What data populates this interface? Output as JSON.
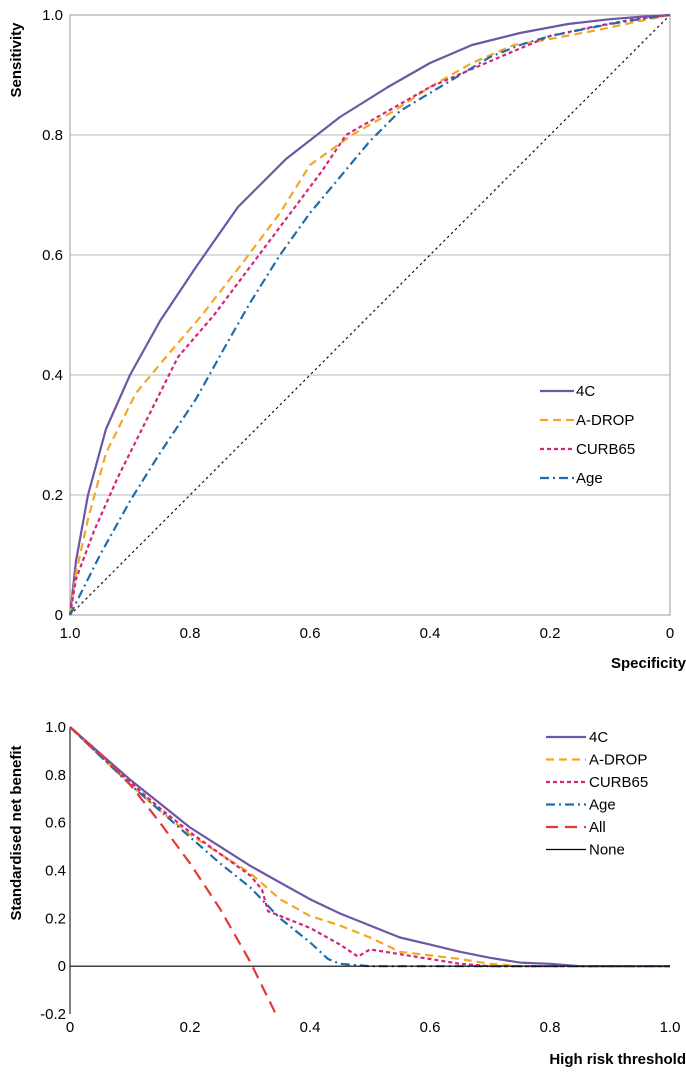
{
  "chart_data": [
    {
      "type": "line",
      "xlabel": "Specificity",
      "ylabel": "Sensitivity",
      "xlim": [
        1.0,
        0
      ],
      "ylim": [
        0,
        1.0
      ],
      "x_reversed": true,
      "x_ticks": [
        "1.0",
        "0.8",
        "0.6",
        "0.4",
        "0.2",
        "0"
      ],
      "x_tick_values": [
        1.0,
        0.8,
        0.6,
        0.4,
        0.2,
        0
      ],
      "y_ticks": [
        "0",
        "0.2",
        "0.4",
        "0.6",
        "0.8",
        "1.0"
      ],
      "y_tick_values": [
        0,
        0.2,
        0.4,
        0.6,
        0.8,
        1.0
      ],
      "grid": "horizontal",
      "legend_position": "bottom-right",
      "reference_line": {
        "from": [
          1.0,
          0
        ],
        "to": [
          0,
          1.0
        ],
        "style": "dotted",
        "color": "#000000"
      },
      "series": [
        {
          "name": "4C",
          "color": "#6E56A6",
          "dash": "solid",
          "x": [
            1.0,
            0.99,
            0.97,
            0.94,
            0.9,
            0.85,
            0.79,
            0.72,
            0.64,
            0.55,
            0.47,
            0.4,
            0.33,
            0.25,
            0.17,
            0.1,
            0.05,
            0
          ],
          "y": [
            0,
            0.09,
            0.2,
            0.31,
            0.4,
            0.49,
            0.58,
            0.68,
            0.76,
            0.83,
            0.88,
            0.92,
            0.95,
            0.97,
            0.985,
            0.993,
            0.997,
            1.0
          ]
        },
        {
          "name": "A-DROP",
          "color": "#F5A623",
          "dash": "8,5",
          "x": [
            1.0,
            0.99,
            0.97,
            0.94,
            0.89,
            0.84,
            0.78,
            0.71,
            0.65,
            0.6,
            0.53,
            0.46,
            0.4,
            0.33,
            0.26,
            0.2,
            0.12,
            0.05,
            0
          ],
          "y": [
            0,
            0.07,
            0.16,
            0.27,
            0.37,
            0.43,
            0.5,
            0.59,
            0.67,
            0.75,
            0.8,
            0.84,
            0.88,
            0.92,
            0.95,
            0.96,
            0.975,
            0.99,
            1.0
          ]
        },
        {
          "name": "CURB65",
          "color": "#D6247A",
          "dash": "4,3",
          "x": [
            1.0,
            0.99,
            0.96,
            0.92,
            0.87,
            0.82,
            0.76,
            0.7,
            0.64,
            0.58,
            0.54,
            0.47,
            0.4,
            0.33,
            0.26,
            0.2,
            0.13,
            0.06,
            0
          ],
          "y": [
            0,
            0.06,
            0.14,
            0.23,
            0.33,
            0.43,
            0.5,
            0.58,
            0.66,
            0.74,
            0.8,
            0.84,
            0.88,
            0.91,
            0.94,
            0.965,
            0.98,
            0.993,
            1.0
          ]
        },
        {
          "name": "Age",
          "color": "#1F6DAE",
          "dash": "9,4,2,4",
          "x": [
            1.0,
            0.98,
            0.95,
            0.9,
            0.85,
            0.79,
            0.74,
            0.7,
            0.65,
            0.6,
            0.55,
            0.5,
            0.45,
            0.4,
            0.35,
            0.3,
            0.25,
            0.2,
            0.15,
            0.1,
            0.05,
            0
          ],
          "y": [
            0,
            0.04,
            0.1,
            0.19,
            0.27,
            0.36,
            0.45,
            0.52,
            0.6,
            0.67,
            0.73,
            0.79,
            0.84,
            0.87,
            0.9,
            0.93,
            0.95,
            0.965,
            0.975,
            0.985,
            0.993,
            1.0
          ]
        }
      ]
    },
    {
      "type": "line",
      "xlabel": "High risk threshold",
      "ylabel": "Standardised net benefit",
      "xlim": [
        0,
        1.0
      ],
      "ylim": [
        -0.2,
        1.0
      ],
      "x_ticks": [
        "0",
        "0.2",
        "0.4",
        "0.6",
        "0.8",
        "1.0"
      ],
      "x_tick_values": [
        0,
        0.2,
        0.4,
        0.6,
        0.8,
        1.0
      ],
      "y_ticks": [
        "-0.2",
        "0",
        "0.2",
        "0.4",
        "0.6",
        "0.8",
        "1.0"
      ],
      "y_tick_values": [
        -0.2,
        0,
        0.2,
        0.4,
        0.6,
        0.8,
        1.0
      ],
      "grid": "none",
      "legend_position": "top-right",
      "series": [
        {
          "name": "4C",
          "color": "#6E56A6",
          "dash": "solid",
          "x": [
            0,
            0.05,
            0.1,
            0.15,
            0.2,
            0.25,
            0.3,
            0.35,
            0.4,
            0.45,
            0.5,
            0.55,
            0.6,
            0.65,
            0.7,
            0.75,
            0.8,
            0.85,
            0.9,
            1.0
          ],
          "y": [
            1.0,
            0.89,
            0.78,
            0.68,
            0.58,
            0.5,
            0.42,
            0.35,
            0.28,
            0.22,
            0.17,
            0.12,
            0.09,
            0.06,
            0.035,
            0.015,
            0.01,
            0.0,
            0.0,
            0.0
          ]
        },
        {
          "name": "A-DROP",
          "color": "#F5A623",
          "dash": "8,5",
          "x": [
            0,
            0.05,
            0.1,
            0.15,
            0.2,
            0.25,
            0.3,
            0.35,
            0.4,
            0.45,
            0.5,
            0.55,
            0.6,
            0.65,
            0.7,
            0.75,
            0.8,
            0.85,
            0.9,
            1.0
          ],
          "y": [
            1.0,
            0.88,
            0.76,
            0.65,
            0.55,
            0.47,
            0.39,
            0.28,
            0.21,
            0.17,
            0.12,
            0.06,
            0.045,
            0.03,
            0.01,
            0.0,
            0.0,
            0.0,
            0.0,
            0.0
          ]
        },
        {
          "name": "CURB65",
          "color": "#D6247A",
          "dash": "4,3",
          "x": [
            0,
            0.05,
            0.1,
            0.15,
            0.2,
            0.25,
            0.3,
            0.32,
            0.33,
            0.35,
            0.4,
            0.45,
            0.48,
            0.5,
            0.55,
            0.6,
            0.65,
            0.7,
            0.75,
            0.8,
            1.0
          ],
          "y": [
            1.0,
            0.88,
            0.77,
            0.66,
            0.56,
            0.47,
            0.38,
            0.32,
            0.23,
            0.21,
            0.16,
            0.09,
            0.04,
            0.07,
            0.05,
            0.03,
            0.01,
            0.0,
            0.0,
            0.0,
            0.0
          ]
        },
        {
          "name": "Age",
          "color": "#1F6DAE",
          "dash": "9,4,2,4",
          "x": [
            0,
            0.05,
            0.1,
            0.15,
            0.2,
            0.25,
            0.3,
            0.35,
            0.4,
            0.43,
            0.45,
            0.5,
            0.6,
            0.7,
            0.8,
            1.0
          ],
          "y": [
            1.0,
            0.88,
            0.76,
            0.65,
            0.54,
            0.43,
            0.33,
            0.2,
            0.1,
            0.03,
            0.01,
            0.0,
            0.0,
            0.0,
            0.0,
            0.0
          ]
        },
        {
          "name": "All",
          "color": "#E53935",
          "dash": "12,7",
          "x": [
            0,
            0.05,
            0.1,
            0.15,
            0.2,
            0.25,
            0.3,
            0.345
          ],
          "y": [
            1.0,
            0.89,
            0.76,
            0.6,
            0.43,
            0.24,
            0.02,
            -0.21
          ]
        },
        {
          "name": "None",
          "color": "#000000",
          "dash": "solid",
          "x": [
            0,
            1.0
          ],
          "y": [
            0,
            0
          ]
        }
      ]
    }
  ]
}
